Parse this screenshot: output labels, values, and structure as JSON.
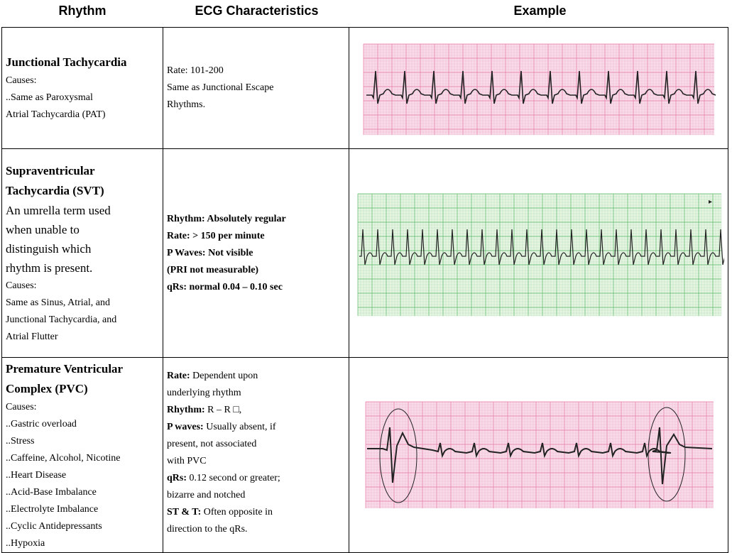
{
  "headers": {
    "rhythm": "Rhythm",
    "ecg": "ECG Characteristics",
    "example": "Example"
  },
  "rows": [
    {
      "title": "Junctional Tachycardia",
      "causes_label": "Causes:",
      "causes": [
        "..Same as Paroxysmal",
        "Atrial Tachycardia (PAT)"
      ],
      "ecg_lines": [
        "Rate: 101-200",
        "Same as Junctional Escape",
        "Rhythms."
      ]
    },
    {
      "title_lines": [
        "Supraventricular",
        "Tachycardia (SVT)"
      ],
      "description": [
        "An umrella term used",
        "when unable to",
        "distinguish which",
        "rhythm is present."
      ],
      "causes_label": "Causes:",
      "causes": [
        "Same as Sinus, Atrial, and",
        "Junctional Tachycardia, and",
        "Atrial Flutter"
      ],
      "ecg_lines": [
        "Rhythm: Absolutely regular",
        "Rate: > 150 per minute",
        "P Waves: Not visible",
        "(PRI not measurable)",
        "qRs: normal 0.04 – 0.10 sec"
      ]
    },
    {
      "title_lines": [
        "Premature Ventricular",
        "Complex (PVC)"
      ],
      "causes_label": "Causes:",
      "causes": [
        "..Gastric overload",
        "..Stress",
        "..Caffeine, Alcohol, Nicotine",
        "..Heart Disease",
        "..Acid-Base Imbalance",
        "..Electrolyte Imbalance",
        "..Cyclic Antidepressants",
        "..Hypoxia"
      ],
      "ecg_items": [
        {
          "label": "Rate:",
          "text": "Dependent upon",
          "cont": "underlying rhythm"
        },
        {
          "label": "Rhythm:",
          "text": "R – R □,"
        },
        {
          "label": "P waves:",
          "text": "Usually absent, if",
          "cont": "present, not associated",
          "cont2": "with PVC"
        },
        {
          "label": "qRs:",
          "text": "0.12 second or greater;",
          "cont": "bizarre and notched"
        },
        {
          "label": "ST & T:",
          "text": "Often opposite in",
          "cont": "direction to the qRs."
        }
      ]
    }
  ],
  "strips": {
    "pink_paper": "#f7dbe8",
    "pink_grid": "#e87aa6",
    "green_paper": "#e6f4e3",
    "green_grid": "#5dbb6a",
    "trace": "#222222"
  }
}
